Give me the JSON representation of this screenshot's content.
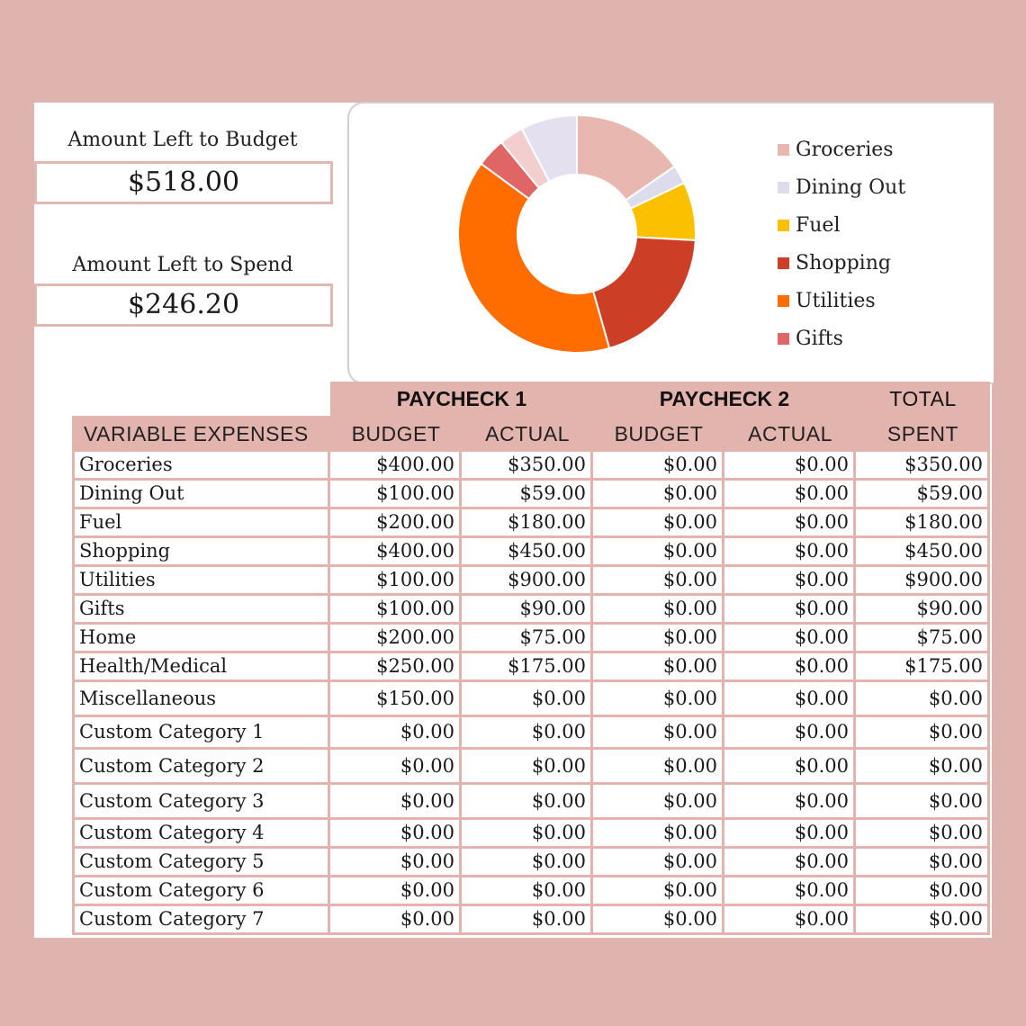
{
  "summary": {
    "left_to_budget_label": "Amount Left to Budget",
    "left_to_budget_value": "$518.00",
    "left_to_spend_label": "Amount Left to Spend",
    "left_to_spend_value": "$246.20"
  },
  "chart_data": {
    "type": "pie",
    "title": "",
    "categories": [
      "Groceries",
      "Dining Out",
      "Fuel",
      "Shopping",
      "Utilities",
      "Gifts",
      "Home",
      "Health/Medical"
    ],
    "values": [
      350,
      59,
      180,
      450,
      900,
      90,
      75,
      175
    ],
    "colors": [
      "#e8b8b0",
      "#dcdcec",
      "#fbc100",
      "#cc3e26",
      "#ff6d00",
      "#e06666",
      "#f3cece",
      "#e4e0ef"
    ],
    "legend_entries": [
      "Groceries",
      "Dining Out",
      "Fuel",
      "Shopping",
      "Utilities",
      "Gifts"
    ],
    "legend_placement": "right"
  },
  "table": {
    "group_headers": [
      "PAYCHECK 1",
      "PAYCHECK 2",
      "TOTAL"
    ],
    "columns": [
      "VARIABLE EXPENSES",
      "BUDGET",
      "ACTUAL",
      "BUDGET",
      "ACTUAL",
      "SPENT"
    ],
    "rows": [
      [
        "Groceries",
        "$400.00",
        "$350.00",
        "$0.00",
        "$0.00",
        "$350.00"
      ],
      [
        "Dining Out",
        "$100.00",
        "$59.00",
        "$0.00",
        "$0.00",
        "$59.00"
      ],
      [
        "Fuel",
        "$200.00",
        "$180.00",
        "$0.00",
        "$0.00",
        "$180.00"
      ],
      [
        "Shopping",
        "$400.00",
        "$450.00",
        "$0.00",
        "$0.00",
        "$450.00"
      ],
      [
        "Utilities",
        "$100.00",
        "$900.00",
        "$0.00",
        "$0.00",
        "$900.00"
      ],
      [
        "Gifts",
        "$100.00",
        "$90.00",
        "$0.00",
        "$0.00",
        "$90.00"
      ],
      [
        "Home",
        "$200.00",
        "$75.00",
        "$0.00",
        "$0.00",
        "$75.00"
      ],
      [
        "Health/Medical",
        "$250.00",
        "$175.00",
        "$0.00",
        "$0.00",
        "$175.00"
      ],
      [
        "Miscellaneous",
        "$150.00",
        "$0.00",
        "$0.00",
        "$0.00",
        "$0.00"
      ],
      [
        "Custom Category 1",
        "$0.00",
        "$0.00",
        "$0.00",
        "$0.00",
        "$0.00"
      ],
      [
        "Custom Category 2",
        "$0.00",
        "$0.00",
        "$0.00",
        "$0.00",
        "$0.00"
      ],
      [
        "Custom Category 3",
        "$0.00",
        "$0.00",
        "$0.00",
        "$0.00",
        "$0.00"
      ],
      [
        "Custom Category 4",
        "$0.00",
        "$0.00",
        "$0.00",
        "$0.00",
        "$0.00"
      ],
      [
        "Custom Category 5",
        "$0.00",
        "$0.00",
        "$0.00",
        "$0.00",
        "$0.00"
      ],
      [
        "Custom Category 6",
        "$0.00",
        "$0.00",
        "$0.00",
        "$0.00",
        "$0.00"
      ],
      [
        "Custom Category 7",
        "$0.00",
        "$0.00",
        "$0.00",
        "$0.00",
        "$0.00"
      ]
    ]
  }
}
